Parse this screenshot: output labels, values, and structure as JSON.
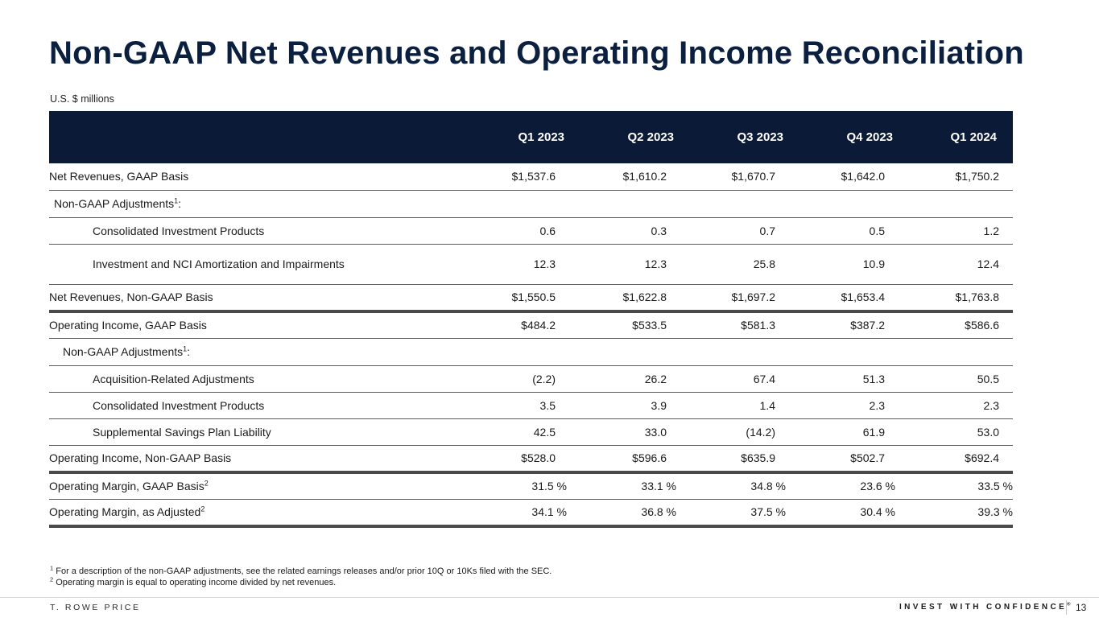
{
  "title": "Non-GAAP Net Revenues and Operating Income Reconciliation",
  "units": "U.S. $ millions",
  "table": {
    "columns": [
      "Q1 2023",
      "Q2 2023",
      "Q3 2023",
      "Q4 2023",
      "Q1 2024"
    ],
    "rows": [
      {
        "label": "Net Revenues, GAAP Basis",
        "values": [
          "$1,537.6",
          "$1,610.2",
          "$1,670.7",
          "$1,642.0",
          "$1,750.2"
        ]
      },
      {
        "label": "Non-GAAP Adjustments",
        "sup": "1",
        "suffix": ":",
        "values": [
          "",
          "",
          "",
          "",
          ""
        ]
      },
      {
        "label": "Consolidated Investment Products",
        "values": [
          "0.6",
          "0.3",
          "0.7",
          "0.5",
          "1.2"
        ]
      },
      {
        "label": "Investment and NCI Amortization and Impairments",
        "values": [
          "12.3",
          "12.3",
          "25.8",
          "10.9",
          "12.4"
        ]
      },
      {
        "label": "Net Revenues, Non-GAAP Basis",
        "values": [
          "$1,550.5",
          "$1,622.8",
          "$1,697.2",
          "$1,653.4",
          "$1,763.8"
        ]
      },
      {
        "label": "Operating Income, GAAP Basis",
        "values": [
          "$484.2",
          "$533.5",
          "$581.3",
          "$387.2",
          "$586.6"
        ]
      },
      {
        "label": "Non-GAAP Adjustments",
        "sup": "1",
        "suffix": ":",
        "values": [
          "",
          "",
          "",
          "",
          ""
        ]
      },
      {
        "label": "Acquisition-Related Adjustments",
        "values": [
          "(2.2)",
          "26.2",
          "67.4",
          "51.3",
          "50.5"
        ]
      },
      {
        "label": "Consolidated Investment Products",
        "values": [
          "3.5",
          "3.9",
          "1.4",
          "2.3",
          "2.3"
        ]
      },
      {
        "label": "Supplemental Savings Plan Liability",
        "values": [
          "42.5",
          "33.0",
          "(14.2)",
          "61.9",
          "53.0"
        ]
      },
      {
        "label": "Operating Income, Non-GAAP Basis",
        "values": [
          "$528.0",
          "$596.6",
          "$635.9",
          "$502.7",
          "$692.4"
        ]
      },
      {
        "label": "Operating Margin, GAAP Basis",
        "sup": "2",
        "values": [
          "31.5 %",
          "33.1 %",
          "34.8 %",
          "23.6 %",
          "33.5 %"
        ]
      },
      {
        "label": "Operating Margin, as Adjusted",
        "sup": "2",
        "values": [
          "34.1 %",
          "36.8 %",
          "37.5 %",
          "30.4 %",
          "39.3 %"
        ]
      }
    ]
  },
  "footnotes": [
    {
      "num": "1",
      "text": "For a description of the non-GAAP adjustments, see the related earnings releases and/or prior 10Q or 10Ks filed with the SEC."
    },
    {
      "num": "2",
      "text": "Operating margin is equal to operating income divided by net revenues."
    }
  ],
  "footer": {
    "brand": "T. ROWE PRICE",
    "tagline": "INVEST WITH CONFIDENCE",
    "tagline_mark": "®",
    "page_number": "13"
  }
}
